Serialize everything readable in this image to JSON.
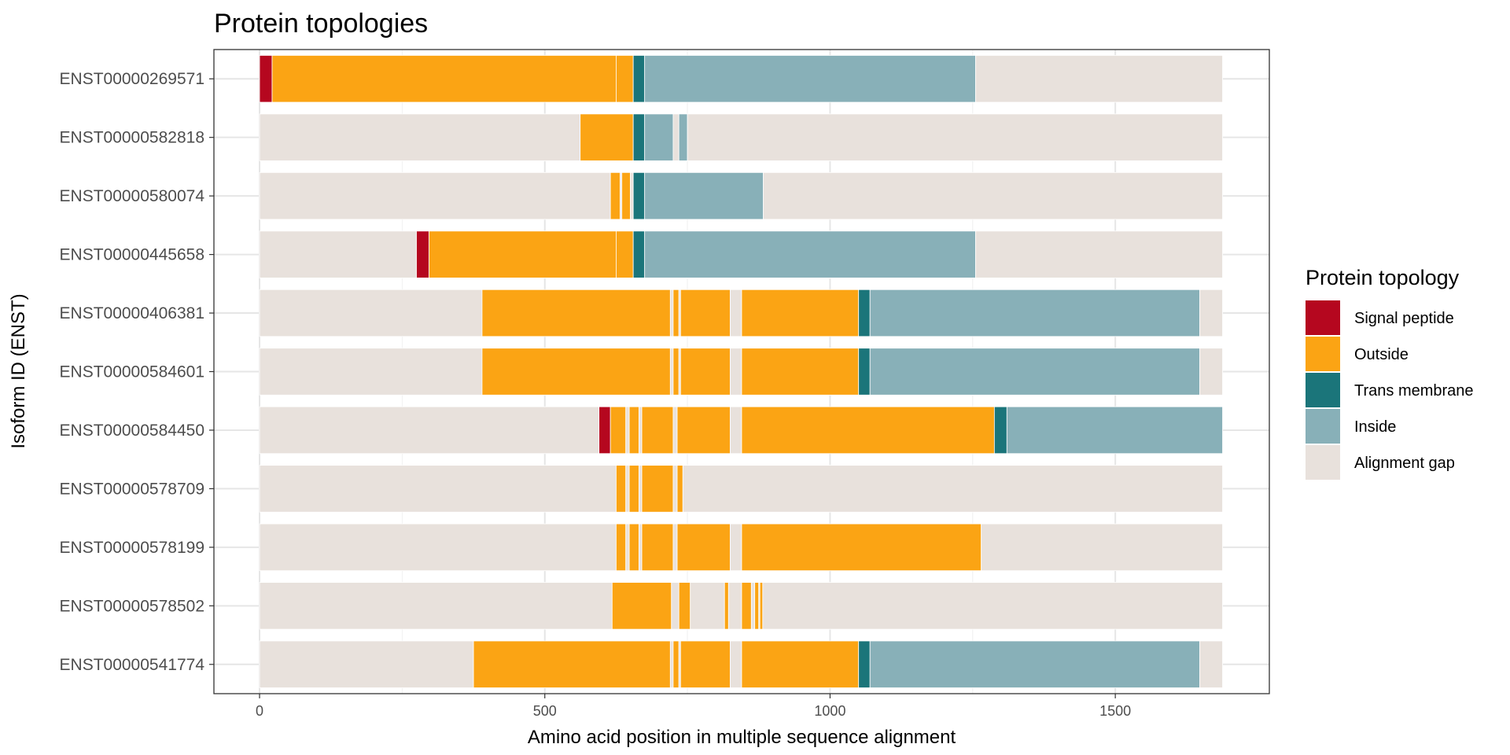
{
  "chart_data": {
    "type": "bar",
    "title": "Protein topologies",
    "xlabel": "Amino acid position in multiple sequence alignment",
    "ylabel": "Isoform ID (ENST)",
    "xlim": [
      -80,
      1770
    ],
    "x_ticks": [
      0,
      500,
      1000,
      1500
    ],
    "grid": true,
    "legend_placement": "right",
    "legend": {
      "title": "Protein topology",
      "items": [
        {
          "key": "signal",
          "label": "Signal peptide",
          "color": "#b5071f"
        },
        {
          "key": "outside",
          "label": "Outside",
          "color": "#fba414"
        },
        {
          "key": "tm",
          "label": "Trans membrane",
          "color": "#1b757a"
        },
        {
          "key": "inside",
          "label": "Inside",
          "color": "#88b0b8"
        },
        {
          "key": "gap",
          "label": "Alignment gap",
          "color": "#e8e1dc"
        }
      ]
    },
    "categories": [
      "ENST00000269571",
      "ENST00000582818",
      "ENST00000580074",
      "ENST00000445658",
      "ENST00000406381",
      "ENST00000584601",
      "ENST00000584450",
      "ENST00000578709",
      "ENST00000578199",
      "ENST00000578502",
      "ENST00000541774"
    ],
    "series": [
      {
        "isoform": "ENST00000269571",
        "segments": [
          [
            "signal",
            0,
            22
          ],
          [
            "outside",
            22,
            625
          ],
          [
            "outside",
            625,
            655
          ],
          [
            "tm",
            655,
            675
          ],
          [
            "inside",
            675,
            1255
          ],
          [
            "gap",
            1255,
            1688
          ]
        ]
      },
      {
        "isoform": "ENST00000582818",
        "segments": [
          [
            "gap",
            0,
            562
          ],
          [
            "outside",
            562,
            655
          ],
          [
            "tm",
            655,
            675
          ],
          [
            "inside",
            675,
            725
          ],
          [
            "gap",
            725,
            735
          ],
          [
            "inside",
            735,
            750
          ],
          [
            "gap",
            750,
            1688
          ]
        ]
      },
      {
        "isoform": "ENST00000580074",
        "segments": [
          [
            "gap",
            0,
            615
          ],
          [
            "outside",
            615,
            632
          ],
          [
            "gap",
            632,
            635
          ],
          [
            "outside",
            635,
            650
          ],
          [
            "gap",
            650,
            655
          ],
          [
            "tm",
            655,
            675
          ],
          [
            "inside",
            675,
            883
          ],
          [
            "gap",
            883,
            1688
          ]
        ]
      },
      {
        "isoform": "ENST00000445658",
        "segments": [
          [
            "gap",
            0,
            275
          ],
          [
            "signal",
            275,
            297
          ],
          [
            "outside",
            297,
            625
          ],
          [
            "outside",
            625,
            655
          ],
          [
            "tm",
            655,
            675
          ],
          [
            "inside",
            675,
            1255
          ],
          [
            "gap",
            1255,
            1688
          ]
        ]
      },
      {
        "isoform": "ENST00000406381",
        "segments": [
          [
            "gap",
            0,
            390
          ],
          [
            "outside",
            390,
            720
          ],
          [
            "gap",
            720,
            725
          ],
          [
            "outside",
            725,
            735
          ],
          [
            "gap",
            735,
            738
          ],
          [
            "outside",
            738,
            825
          ],
          [
            "gap",
            825,
            845
          ],
          [
            "outside",
            845,
            1050
          ],
          [
            "tm",
            1050,
            1070
          ],
          [
            "inside",
            1070,
            1648
          ],
          [
            "gap",
            1648,
            1688
          ]
        ]
      },
      {
        "isoform": "ENST00000584601",
        "segments": [
          [
            "gap",
            0,
            390
          ],
          [
            "outside",
            390,
            720
          ],
          [
            "gap",
            720,
            725
          ],
          [
            "outside",
            725,
            735
          ],
          [
            "gap",
            735,
            738
          ],
          [
            "outside",
            738,
            825
          ],
          [
            "gap",
            825,
            845
          ],
          [
            "outside",
            845,
            1050
          ],
          [
            "tm",
            1050,
            1070
          ],
          [
            "inside",
            1070,
            1648
          ],
          [
            "gap",
            1648,
            1688
          ]
        ]
      },
      {
        "isoform": "ENST00000584450",
        "segments": [
          [
            "gap",
            0,
            595
          ],
          [
            "signal",
            595,
            615
          ],
          [
            "outside",
            615,
            642
          ],
          [
            "gap",
            642,
            648
          ],
          [
            "outside",
            648,
            665
          ],
          [
            "gap",
            665,
            670
          ],
          [
            "outside",
            670,
            725
          ],
          [
            "gap",
            725,
            732
          ],
          [
            "outside",
            732,
            825
          ],
          [
            "gap",
            825,
            845
          ],
          [
            "outside",
            845,
            1288
          ],
          [
            "tm",
            1288,
            1310
          ],
          [
            "inside",
            1310,
            1688
          ]
        ]
      },
      {
        "isoform": "ENST00000578709",
        "segments": [
          [
            "gap",
            0,
            625
          ],
          [
            "outside",
            625,
            642
          ],
          [
            "gap",
            642,
            648
          ],
          [
            "outside",
            648,
            665
          ],
          [
            "gap",
            665,
            670
          ],
          [
            "outside",
            670,
            725
          ],
          [
            "gap",
            725,
            732
          ],
          [
            "outside",
            732,
            742
          ],
          [
            "gap",
            742,
            1688
          ]
        ]
      },
      {
        "isoform": "ENST00000578199",
        "segments": [
          [
            "gap",
            0,
            625
          ],
          [
            "outside",
            625,
            642
          ],
          [
            "gap",
            642,
            648
          ],
          [
            "outside",
            648,
            665
          ],
          [
            "gap",
            665,
            670
          ],
          [
            "outside",
            670,
            725
          ],
          [
            "gap",
            725,
            732
          ],
          [
            "outside",
            732,
            825
          ],
          [
            "gap",
            825,
            845
          ],
          [
            "outside",
            845,
            1265
          ],
          [
            "gap",
            1265,
            1688
          ]
        ]
      },
      {
        "isoform": "ENST00000578502",
        "segments": [
          [
            "gap",
            0,
            618
          ],
          [
            "outside",
            618,
            722
          ],
          [
            "gap",
            722,
            735
          ],
          [
            "outside",
            735,
            755
          ],
          [
            "gap",
            755,
            815
          ],
          [
            "outside",
            815,
            822
          ],
          [
            "gap",
            822,
            845
          ],
          [
            "outside",
            845,
            862
          ],
          [
            "gap",
            862,
            868
          ],
          [
            "outside",
            868,
            875
          ],
          [
            "gap",
            875,
            877
          ],
          [
            "outside",
            877,
            882
          ],
          [
            "gap",
            882,
            1688
          ]
        ]
      },
      {
        "isoform": "ENST00000541774",
        "segments": [
          [
            "gap",
            0,
            375
          ],
          [
            "outside",
            375,
            720
          ],
          [
            "gap",
            720,
            725
          ],
          [
            "outside",
            725,
            735
          ],
          [
            "gap",
            735,
            738
          ],
          [
            "outside",
            738,
            825
          ],
          [
            "gap",
            825,
            845
          ],
          [
            "outside",
            845,
            1050
          ],
          [
            "tm",
            1050,
            1070
          ],
          [
            "inside",
            1070,
            1648
          ],
          [
            "gap",
            1648,
            1688
          ]
        ]
      }
    ]
  }
}
